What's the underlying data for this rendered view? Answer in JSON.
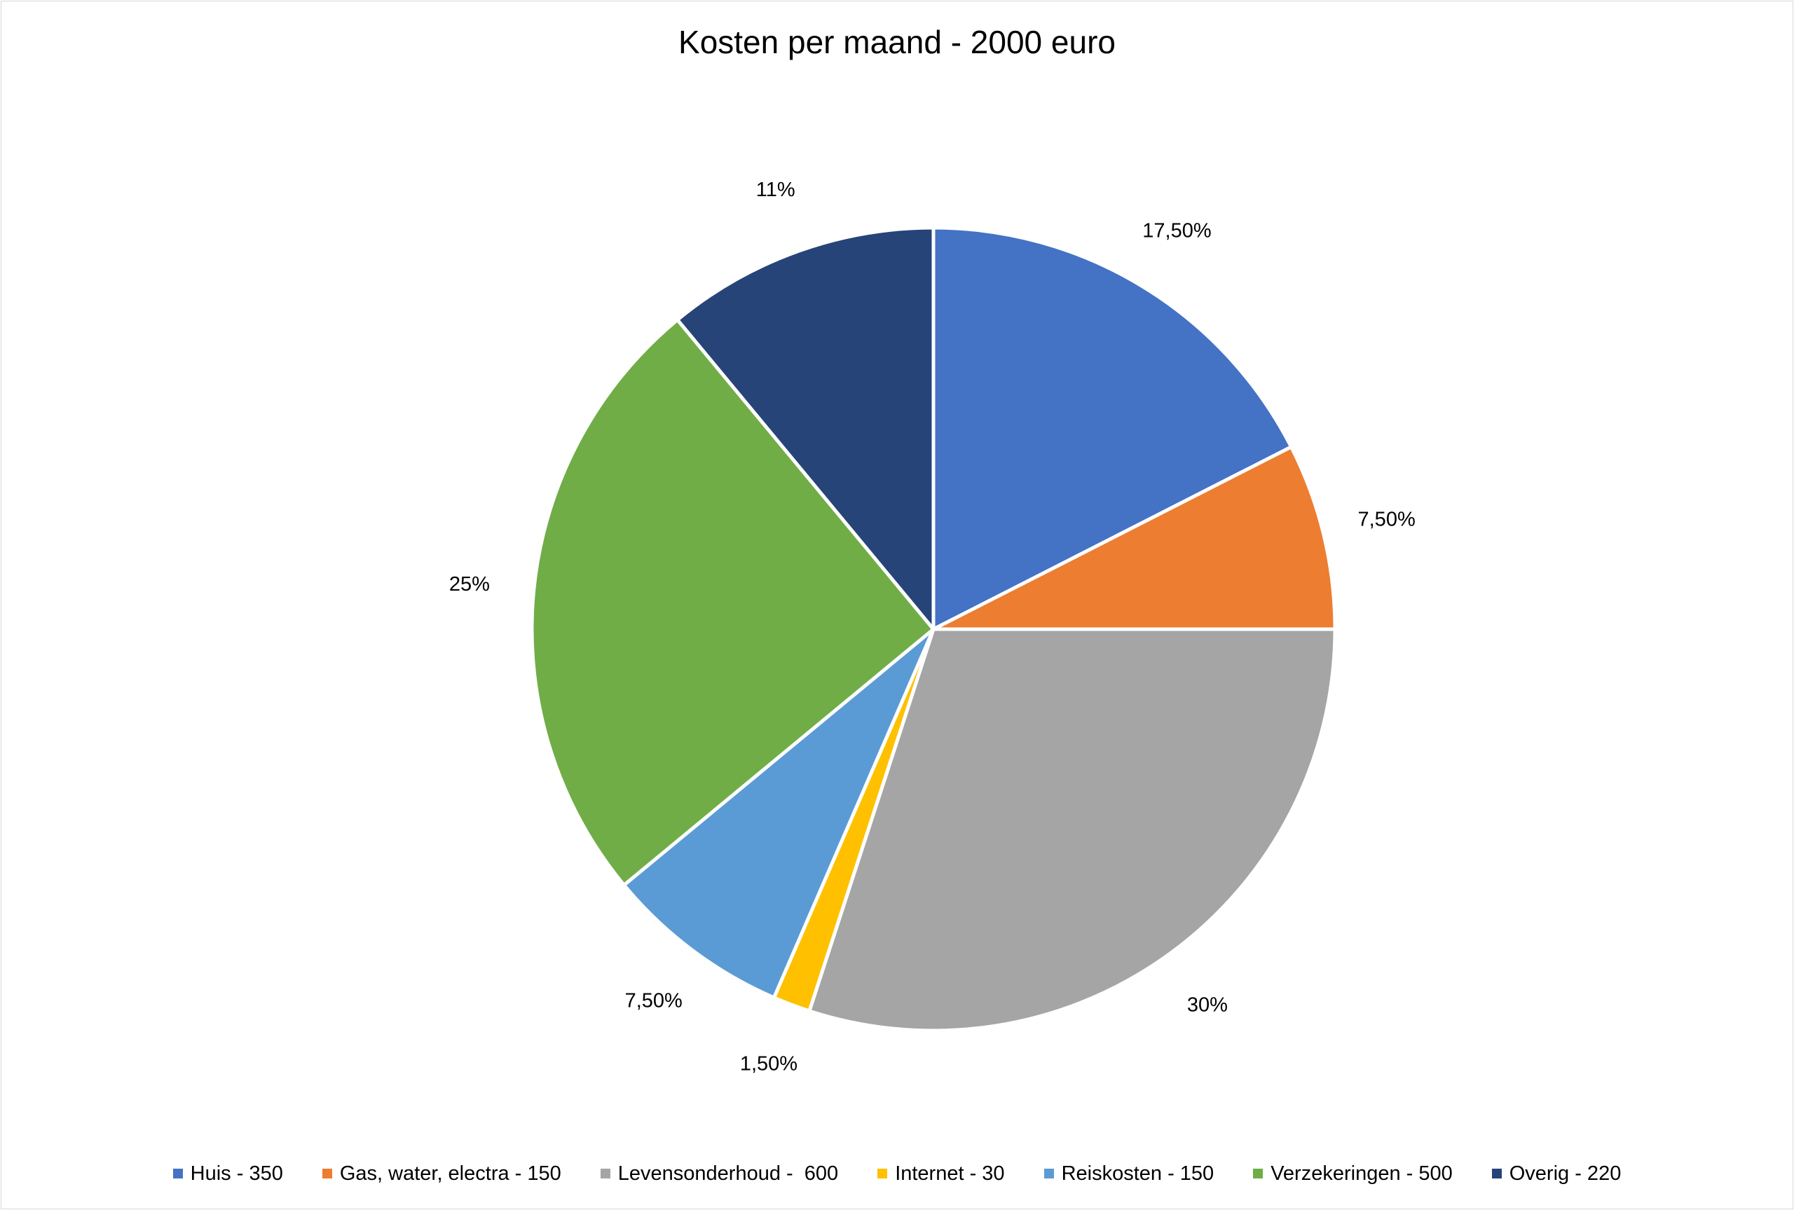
{
  "chart_data": {
    "type": "pie",
    "title": "Kosten per maand - 2000 euro",
    "categories": [
      "Huis - 350",
      "Gas, water, electra - 150",
      "Levensonderhoud -  600",
      "Internet - 30",
      "Reiskosten - 150",
      "Verzekeringen - 500",
      "Overig - 220"
    ],
    "values": [
      350,
      150,
      600,
      30,
      150,
      500,
      220
    ],
    "data_labels": [
      "17,50%",
      "7,50%",
      "30%",
      "1,50%",
      "7,50%",
      "25%",
      "11%"
    ],
    "colors": [
      "#4472C4",
      "#ED7D31",
      "#A5A5A5",
      "#FFC000",
      "#5B9BD5",
      "#70AD47",
      "#264478"
    ],
    "legend_position": "bottom",
    "start_angle": "12 o'clock",
    "direction": "clockwise"
  }
}
